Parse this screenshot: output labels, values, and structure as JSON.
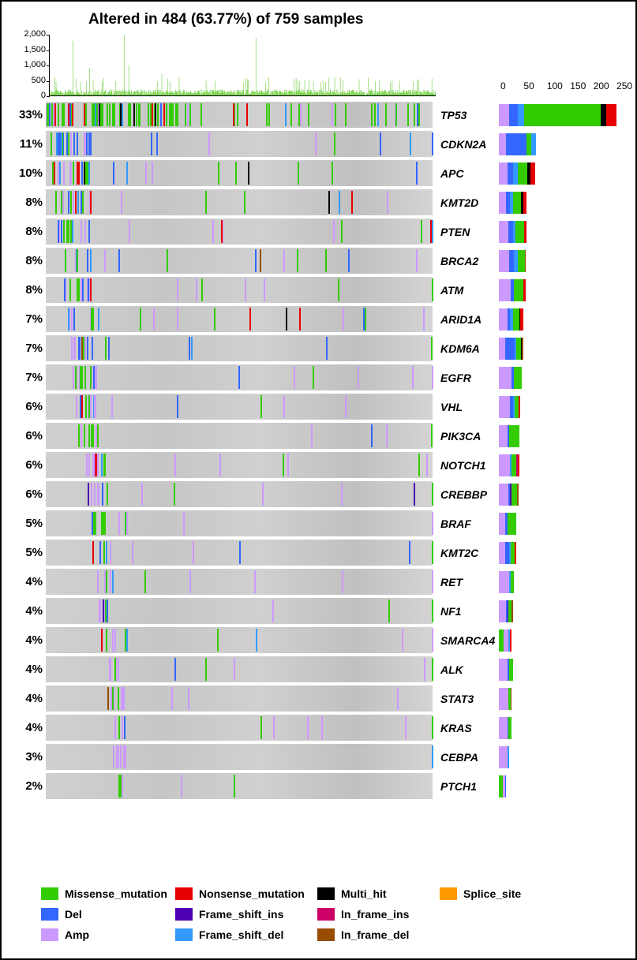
{
  "title": "Altered in 484 (63.77%) of 759 samples",
  "title_fontsize": 19,
  "background_color": "#ffffff",
  "mutation_types": {
    "Missense_mutation": "#33cc00",
    "Nonsense_mutation": "#e60000",
    "Multi_hit": "#000000",
    "Splice_site": "#ff9900",
    "Del": "#3366ff",
    "Frame_shift_ins": "#4d00b3",
    "In_frame_ins": "#cc0066",
    "Amp": "#cc99ff",
    "Frame_shift_del": "#3399ff",
    "In_frame_del": "#994d00"
  },
  "top_bar": {
    "yticks": [
      0,
      500,
      1000,
      1500,
      2000
    ],
    "ylim": [
      0,
      2000
    ],
    "color": "#66cc33",
    "n_samples": 759
  },
  "side_bar": {
    "xticks": [
      0,
      50,
      100,
      150,
      200,
      250
    ],
    "xlim": [
      0,
      255
    ]
  },
  "genes": [
    {
      "name": "TP53",
      "pct": "33%",
      "density": 0.33,
      "sidebar": [
        {
          "c": "Amp",
          "v": 22
        },
        {
          "c": "Del",
          "v": 18
        },
        {
          "c": "Frame_shift_del",
          "v": 15
        },
        {
          "c": "Missense_mutation",
          "v": 165
        },
        {
          "c": "Multi_hit",
          "v": 12
        },
        {
          "c": "Nonsense_mutation",
          "v": 22
        }
      ]
    },
    {
      "name": "CDKN2A",
      "pct": "11%",
      "density": 0.11,
      "sidebar": [
        {
          "c": "Amp",
          "v": 15
        },
        {
          "c": "Del",
          "v": 45
        },
        {
          "c": "Missense_mutation",
          "v": 10
        },
        {
          "c": "Frame_shift_del",
          "v": 10
        }
      ]
    },
    {
      "name": "APC",
      "pct": "10%",
      "density": 0.1,
      "sidebar": [
        {
          "c": "Amp",
          "v": 18
        },
        {
          "c": "Del",
          "v": 12
        },
        {
          "c": "Frame_shift_del",
          "v": 10
        },
        {
          "c": "Missense_mutation",
          "v": 22
        },
        {
          "c": "Multi_hit",
          "v": 6
        },
        {
          "c": "Nonsense_mutation",
          "v": 10
        }
      ]
    },
    {
      "name": "KMT2D",
      "pct": "8%",
      "density": 0.08,
      "sidebar": [
        {
          "c": "Amp",
          "v": 16
        },
        {
          "c": "Del",
          "v": 8
        },
        {
          "c": "Frame_shift_del",
          "v": 6
        },
        {
          "c": "Missense_mutation",
          "v": 18
        },
        {
          "c": "Multi_hit",
          "v": 4
        },
        {
          "c": "Nonsense_mutation",
          "v": 8
        }
      ]
    },
    {
      "name": "PTEN",
      "pct": "8%",
      "density": 0.08,
      "sidebar": [
        {
          "c": "Amp",
          "v": 20
        },
        {
          "c": "Del",
          "v": 10
        },
        {
          "c": "Frame_shift_del",
          "v": 6
        },
        {
          "c": "Missense_mutation",
          "v": 18
        },
        {
          "c": "Nonsense_mutation",
          "v": 5
        }
      ]
    },
    {
      "name": "BRCA2",
      "pct": "8%",
      "density": 0.08,
      "sidebar": [
        {
          "c": "Amp",
          "v": 22
        },
        {
          "c": "Del",
          "v": 10
        },
        {
          "c": "Frame_shift_del",
          "v": 8
        },
        {
          "c": "Missense_mutation",
          "v": 16
        },
        {
          "c": "In_frame_del",
          "v": 2
        }
      ]
    },
    {
      "name": "ATM",
      "pct": "8%",
      "density": 0.08,
      "sidebar": [
        {
          "c": "Amp",
          "v": 25
        },
        {
          "c": "Del",
          "v": 8
        },
        {
          "c": "Missense_mutation",
          "v": 20
        },
        {
          "c": "Nonsense_mutation",
          "v": 4
        }
      ]
    },
    {
      "name": "ARID1A",
      "pct": "7%",
      "density": 0.07,
      "sidebar": [
        {
          "c": "Amp",
          "v": 18
        },
        {
          "c": "Del",
          "v": 6
        },
        {
          "c": "Frame_shift_del",
          "v": 6
        },
        {
          "c": "Missense_mutation",
          "v": 14
        },
        {
          "c": "Multi_hit",
          "v": 2
        },
        {
          "c": "Nonsense_mutation",
          "v": 6
        }
      ]
    },
    {
      "name": "KDM6A",
      "pct": "7%",
      "density": 0.07,
      "sidebar": [
        {
          "c": "Amp",
          "v": 14
        },
        {
          "c": "Del",
          "v": 20
        },
        {
          "c": "Frame_shift_del",
          "v": 4
        },
        {
          "c": "Missense_mutation",
          "v": 10
        },
        {
          "c": "Multi_hit",
          "v": 2
        },
        {
          "c": "In_frame_del",
          "v": 2
        }
      ]
    },
    {
      "name": "EGFR",
      "pct": "7%",
      "density": 0.07,
      "sidebar": [
        {
          "c": "Amp",
          "v": 28
        },
        {
          "c": "Del",
          "v": 4
        },
        {
          "c": "Missense_mutation",
          "v": 18
        }
      ]
    },
    {
      "name": "VHL",
      "pct": "6%",
      "density": 0.06,
      "sidebar": [
        {
          "c": "Amp",
          "v": 24
        },
        {
          "c": "Del",
          "v": 6
        },
        {
          "c": "Frame_shift_del",
          "v": 4
        },
        {
          "c": "Missense_mutation",
          "v": 8
        },
        {
          "c": "Nonsense_mutation",
          "v": 4
        }
      ]
    },
    {
      "name": "PIK3CA",
      "pct": "6%",
      "density": 0.06,
      "sidebar": [
        {
          "c": "Amp",
          "v": 18
        },
        {
          "c": "Del",
          "v": 4
        },
        {
          "c": "Missense_mutation",
          "v": 22
        }
      ]
    },
    {
      "name": "NOTCH1",
      "pct": "6%",
      "density": 0.06,
      "sidebar": [
        {
          "c": "Amp",
          "v": 24
        },
        {
          "c": "Frame_shift_del",
          "v": 4
        },
        {
          "c": "Missense_mutation",
          "v": 10
        },
        {
          "c": "In_frame_ins",
          "v": 2
        },
        {
          "c": "Nonsense_mutation",
          "v": 4
        }
      ]
    },
    {
      "name": "CREBBP",
      "pct": "6%",
      "density": 0.06,
      "sidebar": [
        {
          "c": "Amp",
          "v": 20
        },
        {
          "c": "Del",
          "v": 4
        },
        {
          "c": "Frame_shift_ins",
          "v": 4
        },
        {
          "c": "Missense_mutation",
          "v": 12
        },
        {
          "c": "In_frame_del",
          "v": 2
        }
      ]
    },
    {
      "name": "BRAF",
      "pct": "5%",
      "density": 0.05,
      "sidebar": [
        {
          "c": "Amp",
          "v": 14
        },
        {
          "c": "Del",
          "v": 4
        },
        {
          "c": "Missense_mutation",
          "v": 20
        }
      ]
    },
    {
      "name": "KMT2C",
      "pct": "5%",
      "density": 0.05,
      "sidebar": [
        {
          "c": "Amp",
          "v": 14
        },
        {
          "c": "Del",
          "v": 8
        },
        {
          "c": "Frame_shift_del",
          "v": 4
        },
        {
          "c": "Missense_mutation",
          "v": 8
        },
        {
          "c": "Nonsense_mutation",
          "v": 4
        }
      ]
    },
    {
      "name": "RET",
      "pct": "4%",
      "density": 0.04,
      "sidebar": [
        {
          "c": "Amp",
          "v": 22
        },
        {
          "c": "Frame_shift_del",
          "v": 4
        },
        {
          "c": "Missense_mutation",
          "v": 6
        }
      ]
    },
    {
      "name": "NF1",
      "pct": "4%",
      "density": 0.04,
      "sidebar": [
        {
          "c": "Amp",
          "v": 16
        },
        {
          "c": "Del",
          "v": 2
        },
        {
          "c": "Frame_shift_ins",
          "v": 2
        },
        {
          "c": "Missense_mutation",
          "v": 8
        },
        {
          "c": "In_frame_del",
          "v": 2
        }
      ]
    },
    {
      "name": "SMARCA4",
      "pct": "4%",
      "density": 0.04,
      "sidebar": [
        {
          "c": "Missense_mutation",
          "v": 10
        },
        {
          "c": "Amp",
          "v": 10
        },
        {
          "c": "Frame_shift_del",
          "v": 4
        },
        {
          "c": "Nonsense_mutation",
          "v": 4
        }
      ]
    },
    {
      "name": "ALK",
      "pct": "4%",
      "density": 0.04,
      "sidebar": [
        {
          "c": "Amp",
          "v": 18
        },
        {
          "c": "Del",
          "v": 4
        },
        {
          "c": "Missense_mutation",
          "v": 8
        }
      ]
    },
    {
      "name": "STAT3",
      "pct": "4%",
      "density": 0.04,
      "sidebar": [
        {
          "c": "Amp",
          "v": 20
        },
        {
          "c": "Missense_mutation",
          "v": 6
        },
        {
          "c": "In_frame_del",
          "v": 2
        }
      ]
    },
    {
      "name": "KRAS",
      "pct": "4%",
      "density": 0.04,
      "sidebar": [
        {
          "c": "Amp",
          "v": 18
        },
        {
          "c": "Del",
          "v": 2
        },
        {
          "c": "Missense_mutation",
          "v": 8
        }
      ]
    },
    {
      "name": "CEBPA",
      "pct": "3%",
      "density": 0.03,
      "sidebar": [
        {
          "c": "Amp",
          "v": 18
        },
        {
          "c": "Frame_shift_del",
          "v": 4
        }
      ]
    },
    {
      "name": "PTCH1",
      "pct": "2%",
      "density": 0.02,
      "sidebar": [
        {
          "c": "Missense_mutation",
          "v": 8
        },
        {
          "c": "Amp",
          "v": 6
        },
        {
          "c": "Del",
          "v": 2
        }
      ]
    }
  ],
  "legend_rows": [
    [
      {
        "c": "Missense_mutation",
        "w": 170
      },
      {
        "c": "Nonsense_mutation",
        "w": 180
      },
      {
        "c": "Multi_hit",
        "w": 155
      },
      {
        "c": "Splice_site",
        "w": 150
      }
    ],
    [
      {
        "c": "Del",
        "w": 170
      },
      {
        "c": "Frame_shift_ins",
        "w": 180
      },
      {
        "c": "In_frame_ins",
        "w": 155
      }
    ],
    [
      {
        "c": "Amp",
        "w": 170
      },
      {
        "c": "Frame_shift_del",
        "w": 180
      },
      {
        "c": "In_frame_del",
        "w": 155
      }
    ]
  ]
}
